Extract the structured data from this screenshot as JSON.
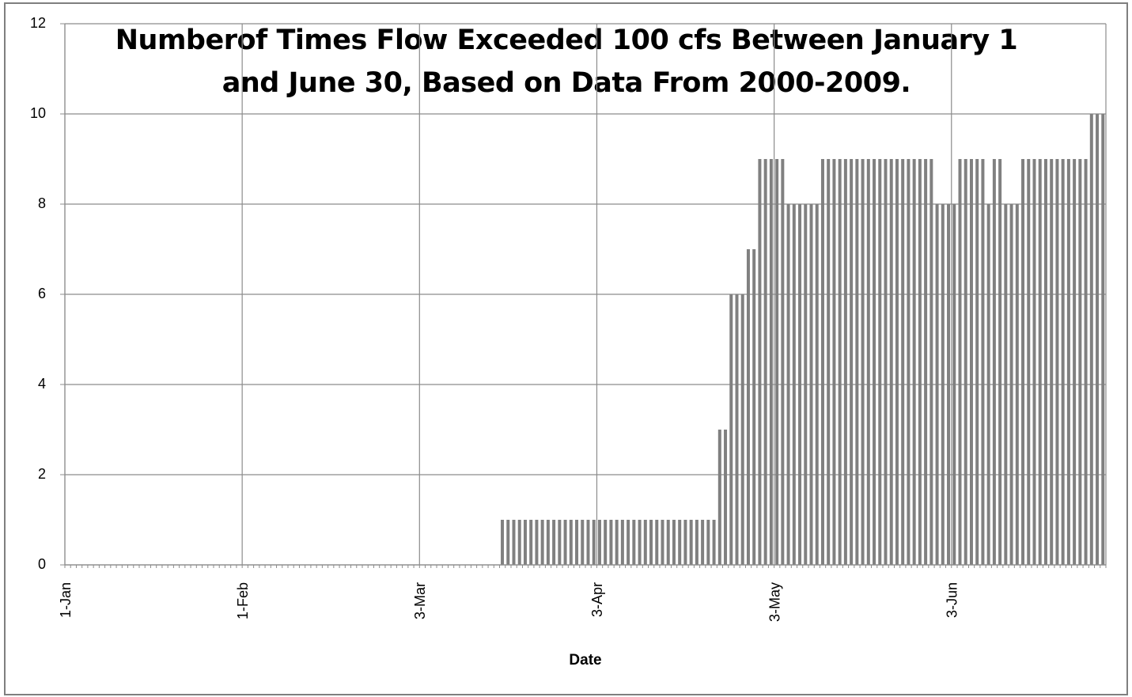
{
  "chart_data": {
    "type": "bar",
    "title": [
      "Numberof Times Flow Exceeded 100 cfs Between January 1",
      "and June 30, Based on Data From 2000-2009."
    ],
    "x_label": "Date",
    "categories": [
      "1-Jan",
      null,
      null,
      null,
      null,
      null,
      null,
      null,
      null,
      null,
      null,
      null,
      null,
      null,
      null,
      null,
      null,
      null,
      null,
      null,
      null,
      null,
      null,
      null,
      null,
      null,
      null,
      null,
      null,
      null,
      null,
      "1-Feb",
      null,
      null,
      null,
      null,
      null,
      null,
      null,
      null,
      null,
      null,
      null,
      null,
      null,
      null,
      null,
      null,
      null,
      null,
      null,
      null,
      null,
      null,
      null,
      null,
      null,
      null,
      null,
      null,
      null,
      null,
      "3-Mar",
      null,
      null,
      null,
      null,
      null,
      null,
      null,
      null,
      null,
      null,
      null,
      null,
      null,
      null,
      null,
      null,
      null,
      null,
      null,
      null,
      null,
      null,
      null,
      null,
      null,
      null,
      null,
      null,
      null,
      null,
      "3-Apr",
      null,
      null,
      null,
      null,
      null,
      null,
      null,
      null,
      null,
      null,
      null,
      null,
      null,
      null,
      null,
      null,
      null,
      null,
      null,
      null,
      null,
      null,
      null,
      null,
      null,
      null,
      null,
      null,
      null,
      null,
      "3-May",
      null,
      null,
      null,
      null,
      null,
      null,
      null,
      null,
      null,
      null,
      null,
      null,
      null,
      null,
      null,
      null,
      null,
      null,
      null,
      null,
      null,
      null,
      null,
      null,
      null,
      null,
      null,
      null,
      null,
      null,
      "3-Jun",
      null,
      null,
      null,
      null,
      null,
      null,
      null,
      null,
      null,
      null,
      null,
      null,
      null,
      null,
      null,
      null,
      null,
      null,
      null,
      null,
      null,
      null,
      null,
      null,
      null,
      null
    ],
    "values": [
      0,
      0,
      0,
      0,
      0,
      0,
      0,
      0,
      0,
      0,
      0,
      0,
      0,
      0,
      0,
      0,
      0,
      0,
      0,
      0,
      0,
      0,
      0,
      0,
      0,
      0,
      0,
      0,
      0,
      0,
      0,
      0,
      0,
      0,
      0,
      0,
      0,
      0,
      0,
      0,
      0,
      0,
      0,
      0,
      0,
      0,
      0,
      0,
      0,
      0,
      0,
      0,
      0,
      0,
      0,
      0,
      0,
      0,
      0,
      0,
      0,
      0,
      0,
      0,
      0,
      0,
      0,
      0,
      0,
      0,
      0,
      0,
      0,
      0,
      0,
      0,
      1,
      1,
      1,
      1,
      1,
      1,
      1,
      1,
      1,
      1,
      1,
      1,
      1,
      1,
      1,
      1,
      1,
      1,
      1,
      1,
      1,
      1,
      1,
      1,
      1,
      1,
      1,
      1,
      1,
      1,
      1,
      1,
      1,
      1,
      1,
      1,
      1,
      1,
      3,
      3,
      6,
      6,
      6,
      7,
      7,
      9,
      9,
      9,
      9,
      9,
      8,
      8,
      8,
      8,
      8,
      8,
      9,
      9,
      9,
      9,
      9,
      9,
      9,
      9,
      9,
      9,
      9,
      9,
      9,
      9,
      9,
      9,
      9,
      9,
      9,
      9,
      8,
      8,
      8,
      8,
      9,
      9,
      9,
      9,
      9,
      8,
      9,
      9,
      8,
      8,
      8,
      9,
      9,
      9,
      9,
      9,
      9,
      9,
      9,
      9,
      9,
      9,
      9,
      10,
      10,
      10
    ],
    "color": "#808080",
    "ylim": [
      0,
      12
    ],
    "yticks": [
      0,
      2,
      4,
      6,
      8,
      10,
      12
    ],
    "grid": true
  }
}
